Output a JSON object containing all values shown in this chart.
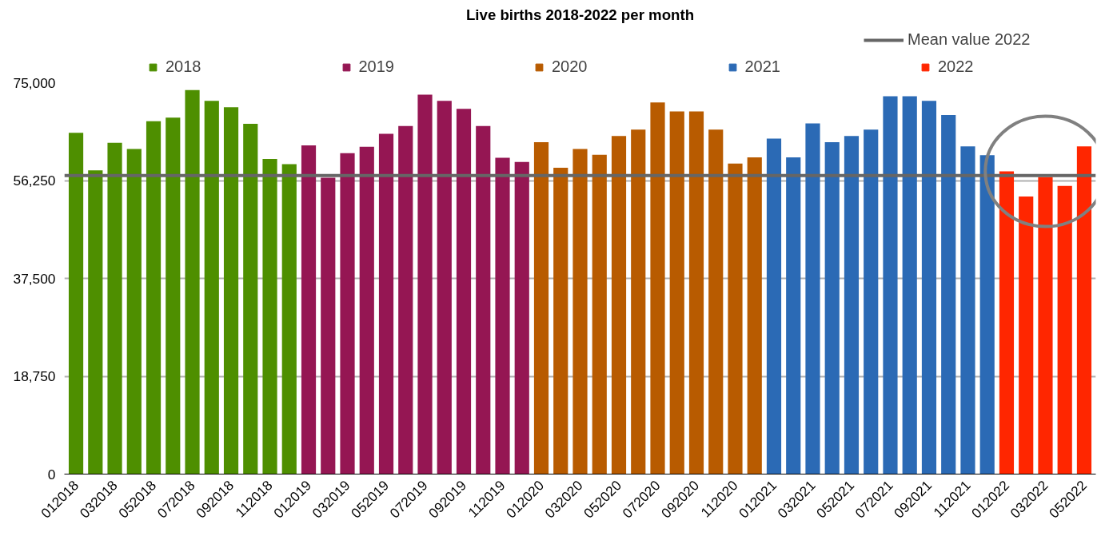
{
  "chart_data": {
    "type": "bar",
    "title": "Live births 2018-2022 per month",
    "categories": [
      "012018",
      null,
      "032018",
      null,
      "052018",
      null,
      "072018",
      null,
      "092018",
      null,
      "112018",
      null,
      "012019",
      null,
      "032019",
      null,
      "052019",
      null,
      "072019",
      null,
      "092019",
      null,
      "112019",
      null,
      "012020",
      null,
      "032020",
      null,
      "052020",
      null,
      "072020",
      null,
      "092020",
      null,
      "112020",
      null,
      "012021",
      null,
      "032021",
      null,
      "052021",
      null,
      "072021",
      null,
      "092021",
      null,
      "112021",
      null,
      "012022",
      null,
      "032022",
      null,
      "052022"
    ],
    "series": [
      {
        "name": "2018",
        "color": "#4e8f00",
        "values": [
          65400,
          58200,
          63500,
          62300,
          67600,
          68300,
          73600,
          71500,
          70300,
          67100,
          60400,
          59400,
          null,
          null,
          null,
          null,
          null,
          null,
          null,
          null,
          null,
          null,
          null,
          null,
          null,
          null,
          null,
          null,
          null,
          null,
          null,
          null,
          null,
          null,
          null,
          null,
          null,
          null,
          null,
          null,
          null,
          null,
          null,
          null,
          null,
          null,
          null,
          null,
          null,
          null,
          null,
          null,
          null
        ]
      },
      {
        "name": "2019",
        "color": "#951653",
        "values": [
          null,
          null,
          null,
          null,
          null,
          null,
          null,
          null,
          null,
          null,
          null,
          null,
          63000,
          56800,
          61500,
          62700,
          65200,
          66700,
          72700,
          71500,
          70000,
          66700,
          60600,
          59800,
          null,
          null,
          null,
          null,
          null,
          null,
          null,
          null,
          null,
          null,
          null,
          null,
          null,
          null,
          null,
          null,
          null,
          null,
          null,
          null,
          null,
          null,
          null,
          null,
          null,
          null,
          null,
          null,
          null
        ]
      },
      {
        "name": "2020",
        "color": "#b85b00",
        "values": [
          null,
          null,
          null,
          null,
          null,
          null,
          null,
          null,
          null,
          null,
          null,
          null,
          null,
          null,
          null,
          null,
          null,
          null,
          null,
          null,
          null,
          null,
          null,
          null,
          63600,
          58700,
          62300,
          61200,
          64800,
          66000,
          71200,
          69500,
          69500,
          66000,
          59500,
          60700,
          null,
          null,
          null,
          null,
          null,
          null,
          null,
          null,
          null,
          null,
          null,
          null,
          null,
          null,
          null,
          null,
          null
        ]
      },
      {
        "name": "2021",
        "color": "#2b6ab5",
        "values": [
          null,
          null,
          null,
          null,
          null,
          null,
          null,
          null,
          null,
          null,
          null,
          null,
          null,
          null,
          null,
          null,
          null,
          null,
          null,
          null,
          null,
          null,
          null,
          null,
          null,
          null,
          null,
          null,
          null,
          null,
          null,
          null,
          null,
          null,
          null,
          null,
          64300,
          60700,
          67200,
          63600,
          64800,
          66000,
          72400,
          72400,
          71500,
          68800,
          62800,
          61100,
          null,
          null,
          null,
          null,
          null
        ]
      },
      {
        "name": "2022",
        "color": "#ff2600",
        "values": [
          null,
          null,
          null,
          null,
          null,
          null,
          null,
          null,
          null,
          null,
          null,
          null,
          null,
          null,
          null,
          null,
          null,
          null,
          null,
          null,
          null,
          null,
          null,
          null,
          null,
          null,
          null,
          null,
          null,
          null,
          null,
          null,
          null,
          null,
          null,
          null,
          null,
          null,
          null,
          null,
          null,
          null,
          null,
          null,
          null,
          null,
          null,
          null,
          58000,
          53200,
          56900,
          55200,
          62800
        ]
      }
    ],
    "ylim": [
      0,
      75000
    ],
    "yticks": [
      {
        "value": 0,
        "label": "0"
      },
      {
        "value": 18750,
        "label": "18,750"
      },
      {
        "value": 37500,
        "label": "37,500"
      },
      {
        "value": 56250,
        "label": "56,250"
      },
      {
        "value": 75000,
        "label": "75,000"
      }
    ],
    "ref_lines": [
      {
        "axis": "y",
        "value": 57200,
        "label": "Mean value 2022",
        "color": "#666666"
      }
    ],
    "grid": "y",
    "legend": "top"
  }
}
